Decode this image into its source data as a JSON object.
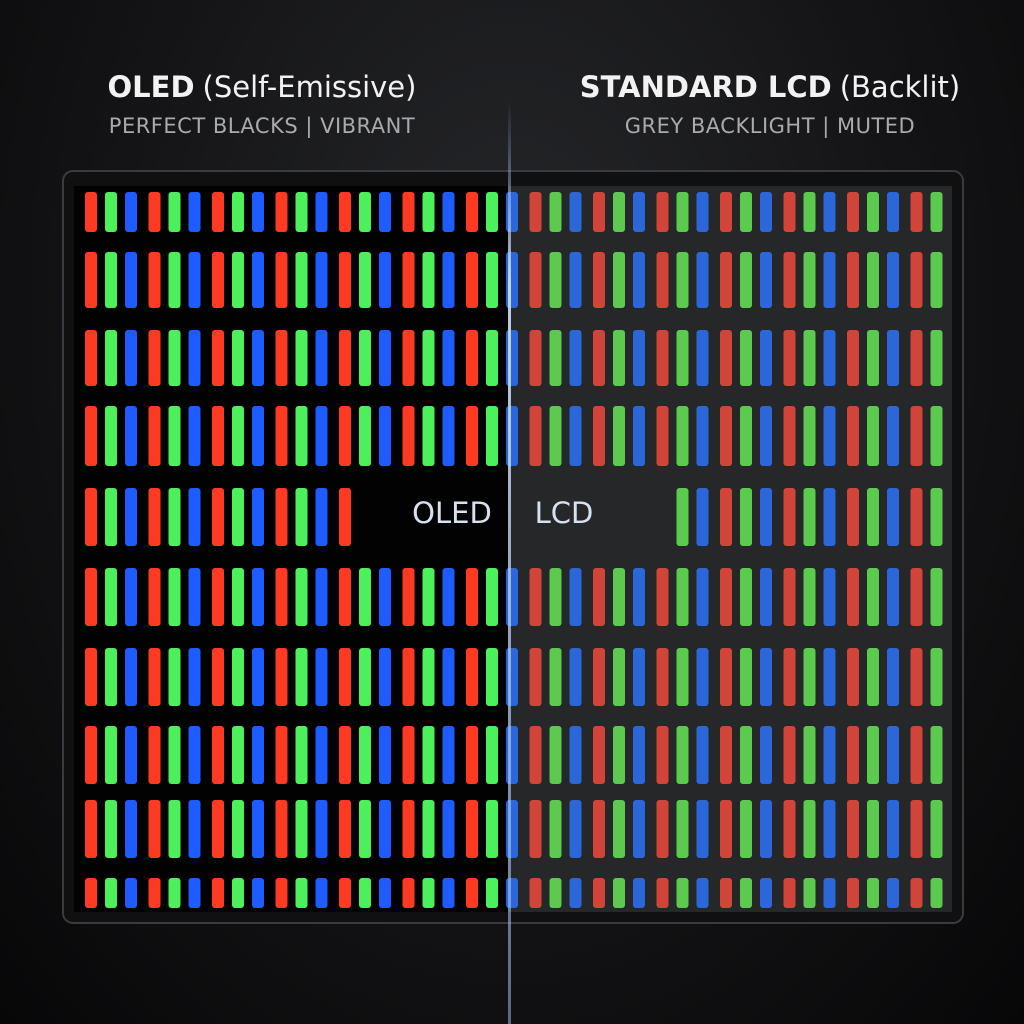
{
  "header": {
    "left": {
      "title_bold": "OLED",
      "title_rest": "(Self-Emissive)",
      "subtitle": "PERFECT BLACKS | VIBRANT"
    },
    "right": {
      "title_bold": "STANDARD LCD",
      "title_rest": "(Backlit)",
      "subtitle": "GREY BACKLIGHT | MUTED"
    }
  },
  "panel": {
    "left_label": "OLED",
    "right_label": "LCD"
  }
}
